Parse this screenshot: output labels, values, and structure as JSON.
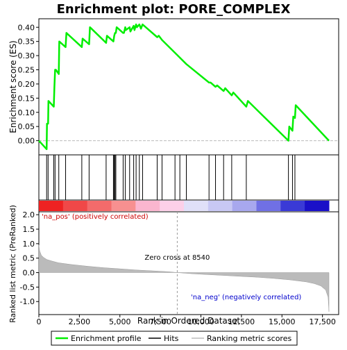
{
  "chart_data": {
    "type": "line",
    "title": "Enrichment plot: PORE_COMPLEX",
    "xlabel": "Rank in Ordered Dataset",
    "top_panel": {
      "ylabel": "Enrichment score (ES)",
      "ylim": [
        -0.05,
        0.43
      ],
      "yticks": [
        0.0,
        0.05,
        0.1,
        0.15,
        0.2,
        0.25,
        0.3,
        0.35,
        0.4
      ],
      "ytick_labels": [
        "0.00",
        "0.05",
        "0.10",
        "0.15",
        "0.20",
        "0.25",
        "0.30",
        "0.35",
        "0.40"
      ],
      "series": {
        "name": "Enrichment profile",
        "color": "#00ee00",
        "x": [
          0,
          480,
          500,
          570,
          590,
          920,
          960,
          1000,
          1050,
          1230,
          1260,
          1650,
          1700,
          2650,
          2700,
          3100,
          3150,
          4150,
          4200,
          4600,
          4650,
          4700,
          4750,
          4800,
          5200,
          5250,
          5330,
          5370,
          5600,
          5650,
          5850,
          5900,
          6000,
          6050,
          6200,
          6300,
          6400,
          7300,
          7400,
          7600,
          9100,
          10500,
          10600,
          10900,
          11000,
          11400,
          11500,
          11900,
          12000,
          12800,
          12900,
          15400,
          15450,
          15650,
          15700,
          15800,
          15850,
          17900
        ],
        "y": [
          0.0,
          -0.03,
          0.06,
          0.06,
          0.14,
          0.12,
          0.19,
          0.25,
          0.25,
          0.235,
          0.35,
          0.33,
          0.38,
          0.33,
          0.36,
          0.34,
          0.4,
          0.345,
          0.37,
          0.35,
          0.37,
          0.38,
          0.38,
          0.4,
          0.38,
          0.38,
          0.4,
          0.39,
          0.4,
          0.385,
          0.405,
          0.39,
          0.41,
          0.4,
          0.41,
          0.395,
          0.41,
          0.365,
          0.37,
          0.355,
          0.27,
          0.205,
          0.205,
          0.19,
          0.195,
          0.175,
          0.185,
          0.16,
          0.17,
          0.12,
          0.14,
          0.0,
          0.05,
          0.035,
          0.085,
          0.08,
          0.125,
          0.0
        ]
      }
    },
    "hits": {
      "name": "Hits",
      "x": [
        480,
        570,
        920,
        1000,
        1230,
        1650,
        2650,
        3100,
        4150,
        4600,
        4650,
        4700,
        4750,
        5200,
        5330,
        5600,
        5850,
        6000,
        6200,
        6400,
        7300,
        7600,
        8400,
        8700,
        9100,
        10500,
        10900,
        11400,
        11900,
        12800,
        15400,
        15650,
        15800
      ]
    },
    "ranking_panel": {
      "ylabel": "Ranked list metric (PreRanked)",
      "ylim": [
        -1.45,
        2.1
      ],
      "yticks": [
        -1.0,
        -0.5,
        0.0,
        0.5,
        1.0,
        1.5,
        2.0
      ],
      "ytick_labels": [
        "-1.0",
        "-0.5",
        "0.0",
        "0.5",
        "1.0",
        "1.5",
        "2.0"
      ],
      "series": {
        "name": "Ranking metric scores",
        "color": "#bbbbbb",
        "x": [
          0,
          50,
          150,
          300,
          500,
          800,
          1200,
          2000,
          3000,
          4000,
          5000,
          6000,
          7000,
          8000,
          8540,
          9500,
          10500,
          11500,
          12500,
          13500,
          14500,
          15500,
          16500,
          17000,
          17400,
          17700,
          17850,
          17900
        ],
        "y": [
          0.95,
          0.75,
          0.6,
          0.52,
          0.45,
          0.4,
          0.34,
          0.28,
          0.22,
          0.17,
          0.13,
          0.09,
          0.06,
          0.03,
          0.0,
          -0.04,
          -0.07,
          -0.1,
          -0.13,
          -0.16,
          -0.2,
          -0.25,
          -0.32,
          -0.38,
          -0.46,
          -0.6,
          -0.85,
          -1.35
        ]
      },
      "zero_cross": 8540,
      "zero_cross_label": "Zero cross at 8540",
      "pos_label": "'na_pos' (positively correlated)",
      "neg_label": "'na_neg' (negatively correlated)"
    },
    "xlim": [
      0,
      18500
    ],
    "xticks": [
      0,
      2500,
      5000,
      7500,
      10000,
      12500,
      15000,
      17500
    ],
    "xtick_labels": [
      "0",
      "2,500",
      "5,000",
      "7,500",
      "10,000",
      "12,500",
      "15,000",
      "17,500"
    ],
    "total_genes": 17900,
    "heatmap_colors": [
      "#ee2222",
      "#f04848",
      "#f36b6b",
      "#f79090",
      "#fab6cf",
      "#fcd0e8",
      "#e0e0f8",
      "#c8c8f4",
      "#a8a8ee",
      "#7070e4",
      "#3a3ad6",
      "#1a10c8"
    ],
    "legend": {
      "position": "bottom",
      "items": [
        {
          "label": "Enrichment profile",
          "color": "#00ee00"
        },
        {
          "label": "Hits",
          "color": "#000000"
        },
        {
          "label": "Ranking metric scores",
          "color": "#bbbbbb"
        }
      ]
    },
    "grid": false
  }
}
